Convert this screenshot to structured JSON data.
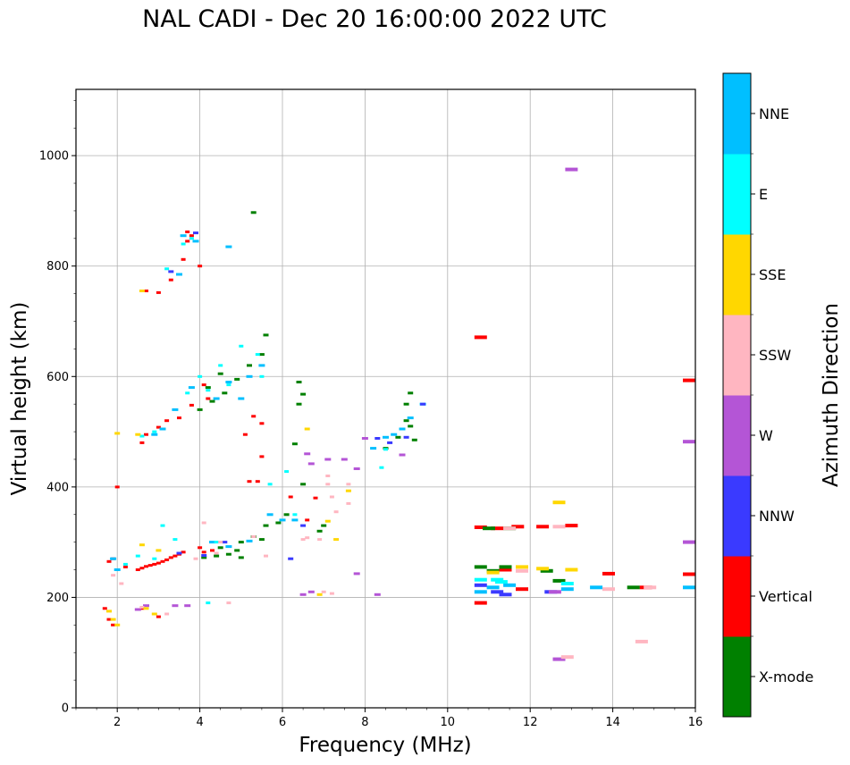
{
  "chart_data": {
    "type": "scatter",
    "title": "NAL CADI - Dec 20 16:00:00 2022 UTC",
    "xlabel": "Frequency (MHz)",
    "ylabel": "Virtual height (km)",
    "xlim": [
      1,
      16
    ],
    "ylim": [
      0,
      1120
    ],
    "xticks": [
      2,
      4,
      6,
      8,
      10,
      12,
      14,
      16
    ],
    "yticks": [
      0,
      200,
      400,
      600,
      800,
      1000
    ],
    "grid": true,
    "colorbar": {
      "label": "Azimuth Direction",
      "categories": [
        {
          "name": "X-mode",
          "color": "#008000"
        },
        {
          "name": "Vertical",
          "color": "#ff0000"
        },
        {
          "name": "NNW",
          "color": "#3a3aff"
        },
        {
          "name": "W",
          "color": "#b455d6"
        },
        {
          "name": "SSW",
          "color": "#ffb6c1"
        },
        {
          "name": "SSE",
          "color": "#ffd700"
        },
        {
          "name": "E",
          "color": "#00ffff"
        },
        {
          "name": "NNE",
          "color": "#00bfff"
        }
      ]
    },
    "series": [
      {
        "name": "Vertical",
        "points": [
          [
            3.7,
            862
          ],
          [
            3.8,
            855
          ],
          [
            3.7,
            845
          ],
          [
            3.6,
            812
          ],
          [
            4.0,
            800
          ],
          [
            3.3,
            775
          ],
          [
            3.0,
            752
          ],
          [
            2.7,
            755
          ],
          [
            10.8,
            671
          ],
          [
            16.0,
            593
          ],
          [
            4.1,
            585
          ],
          [
            4.2,
            560
          ],
          [
            3.8,
            548
          ],
          [
            3.5,
            525
          ],
          [
            3.2,
            520
          ],
          [
            3.0,
            508
          ],
          [
            2.7,
            495
          ],
          [
            2.6,
            480
          ],
          [
            5.3,
            528
          ],
          [
            5.1,
            495
          ],
          [
            5.5,
            455
          ],
          [
            5.5,
            515
          ],
          [
            6.2,
            382
          ],
          [
            6.8,
            380
          ],
          [
            6.6,
            340
          ],
          [
            5.4,
            410
          ],
          [
            5.2,
            410
          ],
          [
            2.5,
            250
          ],
          [
            2.6,
            253
          ],
          [
            2.7,
            256
          ],
          [
            2.8,
            258
          ],
          [
            2.9,
            260
          ],
          [
            3.0,
            262
          ],
          [
            3.1,
            265
          ],
          [
            3.2,
            268
          ],
          [
            3.3,
            272
          ],
          [
            3.4,
            275
          ],
          [
            3.5,
            278
          ],
          [
            3.6,
            282
          ],
          [
            4.1,
            282
          ],
          [
            4.3,
            285
          ],
          [
            4.0,
            290
          ],
          [
            2.2,
            255
          ],
          [
            1.8,
            265
          ],
          [
            1.9,
            270
          ],
          [
            2.0,
            400
          ],
          [
            10.8,
            327
          ],
          [
            11.2,
            325
          ],
          [
            11.7,
            328
          ],
          [
            12.3,
            328
          ],
          [
            13.0,
            330
          ],
          [
            11.8,
            215
          ],
          [
            11.4,
            250
          ],
          [
            10.8,
            190
          ],
          [
            13.9,
            243
          ],
          [
            14.8,
            218
          ],
          [
            16.0,
            242
          ],
          [
            1.7,
            180
          ],
          [
            1.8,
            160
          ],
          [
            1.9,
            150
          ],
          [
            2.6,
            180
          ],
          [
            3.0,
            165
          ]
        ]
      },
      {
        "name": "X-mode",
        "points": [
          [
            5.3,
            897
          ],
          [
            5.6,
            675
          ],
          [
            5.5,
            640
          ],
          [
            5.2,
            620
          ],
          [
            4.9,
            595
          ],
          [
            4.6,
            570
          ],
          [
            4.3,
            555
          ],
          [
            4.0,
            540
          ],
          [
            4.2,
            580
          ],
          [
            4.5,
            605
          ],
          [
            6.4,
            590
          ],
          [
            6.5,
            568
          ],
          [
            6.4,
            550
          ],
          [
            5.6,
            330
          ],
          [
            5.5,
            305
          ],
          [
            5.3,
            310
          ],
          [
            5.0,
            300
          ],
          [
            4.9,
            285
          ],
          [
            4.7,
            278
          ],
          [
            4.4,
            275
          ],
          [
            4.1,
            272
          ],
          [
            5.9,
            335
          ],
          [
            6.1,
            350
          ],
          [
            6.3,
            478
          ],
          [
            6.5,
            405
          ],
          [
            7.0,
            330
          ],
          [
            6.9,
            320
          ],
          [
            9.1,
            570
          ],
          [
            9.0,
            550
          ],
          [
            9.0,
            520
          ],
          [
            9.1,
            510
          ],
          [
            8.8,
            490
          ],
          [
            9.2,
            485
          ],
          [
            8.5,
            470
          ],
          [
            10.8,
            255
          ],
          [
            11.4,
            255
          ],
          [
            11.1,
            248
          ],
          [
            11.0,
            325
          ],
          [
            11.5,
            325
          ],
          [
            12.4,
            248
          ],
          [
            12.7,
            230
          ],
          [
            14.5,
            218
          ],
          [
            5.0,
            272
          ],
          [
            4.5,
            290
          ]
        ]
      },
      {
        "name": "NNE",
        "points": [
          [
            3.6,
            855
          ],
          [
            3.9,
            845
          ],
          [
            4.7,
            835
          ],
          [
            3.5,
            785
          ],
          [
            3.8,
            580
          ],
          [
            3.4,
            540
          ],
          [
            3.1,
            505
          ],
          [
            2.9,
            495
          ],
          [
            4.4,
            560
          ],
          [
            4.7,
            590
          ],
          [
            5.0,
            560
          ],
          [
            5.2,
            600
          ],
          [
            5.5,
            620
          ],
          [
            6.0,
            340
          ],
          [
            6.3,
            340
          ],
          [
            5.7,
            350
          ],
          [
            8.5,
            490
          ],
          [
            8.7,
            495
          ],
          [
            8.9,
            505
          ],
          [
            9.1,
            525
          ],
          [
            9.4,
            550
          ],
          [
            8.2,
            470
          ],
          [
            10.8,
            210
          ],
          [
            11.1,
            218
          ],
          [
            11.5,
            222
          ],
          [
            12.9,
            215
          ],
          [
            13.6,
            218
          ],
          [
            16.0,
            218
          ],
          [
            4.3,
            300
          ],
          [
            4.7,
            292
          ],
          [
            5.2,
            302
          ],
          [
            1.9,
            270
          ],
          [
            2.0,
            250
          ]
        ]
      },
      {
        "name": "E",
        "points": [
          [
            3.8,
            850
          ],
          [
            3.6,
            840
          ],
          [
            3.2,
            795
          ],
          [
            4.2,
            575
          ],
          [
            4.7,
            585
          ],
          [
            5.0,
            655
          ],
          [
            4.5,
            620
          ],
          [
            4.0,
            600
          ],
          [
            3.7,
            570
          ],
          [
            2.9,
            500
          ],
          [
            2.6,
            492
          ],
          [
            5.4,
            640
          ],
          [
            5.5,
            600
          ],
          [
            6.1,
            428
          ],
          [
            6.3,
            350
          ],
          [
            5.7,
            405
          ],
          [
            8.4,
            435
          ],
          [
            8.5,
            468
          ],
          [
            10.8,
            232
          ],
          [
            11.2,
            232
          ],
          [
            11.3,
            228
          ],
          [
            12.9,
            225
          ],
          [
            2.2,
            260
          ],
          [
            2.5,
            275
          ],
          [
            2.9,
            270
          ],
          [
            3.1,
            330
          ],
          [
            3.4,
            305
          ],
          [
            4.2,
            190
          ],
          [
            4.4,
            300
          ]
        ]
      },
      {
        "name": "NNW",
        "points": [
          [
            3.9,
            860
          ],
          [
            3.3,
            790
          ],
          [
            6.2,
            270
          ],
          [
            6.5,
            330
          ],
          [
            8.3,
            488
          ],
          [
            8.6,
            480
          ],
          [
            9.0,
            490
          ],
          [
            9.4,
            550
          ],
          [
            10.8,
            222
          ],
          [
            11.2,
            210
          ],
          [
            11.4,
            205
          ],
          [
            12.5,
            210
          ],
          [
            3.5,
            280
          ],
          [
            4.1,
            276
          ],
          [
            4.6,
            300
          ]
        ]
      },
      {
        "name": "W",
        "points": [
          [
            6.7,
            442
          ],
          [
            6.6,
            460
          ],
          [
            7.1,
            450
          ],
          [
            7.5,
            450
          ],
          [
            7.8,
            433
          ],
          [
            7.8,
            243
          ],
          [
            8.3,
            205
          ],
          [
            8.0,
            488
          ],
          [
            8.9,
            458
          ],
          [
            6.5,
            205
          ],
          [
            6.7,
            210
          ],
          [
            12.6,
            210
          ],
          [
            12.7,
            88
          ],
          [
            13.0,
            975
          ],
          [
            16.0,
            300
          ],
          [
            16.0,
            482
          ],
          [
            3.4,
            185
          ],
          [
            3.7,
            185
          ],
          [
            2.7,
            185
          ],
          [
            2.5,
            178
          ]
        ]
      },
      {
        "name": "SSW",
        "points": [
          [
            7.1,
            420
          ],
          [
            7.1,
            405
          ],
          [
            7.2,
            382
          ],
          [
            7.6,
            405
          ],
          [
            7.6,
            370
          ],
          [
            7.3,
            355
          ],
          [
            6.6,
            308
          ],
          [
            6.9,
            305
          ],
          [
            7.0,
            210
          ],
          [
            7.2,
            207
          ],
          [
            6.5,
            305
          ],
          [
            5.6,
            275
          ],
          [
            5.3,
            310
          ],
          [
            4.7,
            190
          ],
          [
            4.4,
            280
          ],
          [
            4.1,
            335
          ],
          [
            4.5,
            300
          ],
          [
            11.5,
            325
          ],
          [
            11.8,
            248
          ],
          [
            12.7,
            328
          ],
          [
            12.9,
            92
          ],
          [
            13.9,
            215
          ],
          [
            14.7,
            120
          ],
          [
            14.9,
            218
          ],
          [
            2.6,
            182
          ],
          [
            3.2,
            170
          ],
          [
            1.9,
            240
          ],
          [
            2.1,
            225
          ],
          [
            3.9,
            270
          ]
        ]
      },
      {
        "name": "SSE",
        "points": [
          [
            2.6,
            755
          ],
          [
            2.5,
            495
          ],
          [
            2.0,
            497
          ],
          [
            6.6,
            505
          ],
          [
            7.1,
            338
          ],
          [
            7.3,
            305
          ],
          [
            7.6,
            393
          ],
          [
            6.9,
            205
          ],
          [
            12.7,
            372
          ],
          [
            12.3,
            252
          ],
          [
            11.1,
            245
          ],
          [
            11.8,
            255
          ],
          [
            13.0,
            250
          ],
          [
            1.9,
            160
          ],
          [
            2.0,
            150
          ],
          [
            1.8,
            175
          ],
          [
            2.9,
            170
          ],
          [
            2.7,
            180
          ],
          [
            2.6,
            295
          ],
          [
            3.0,
            285
          ]
        ]
      }
    ]
  }
}
